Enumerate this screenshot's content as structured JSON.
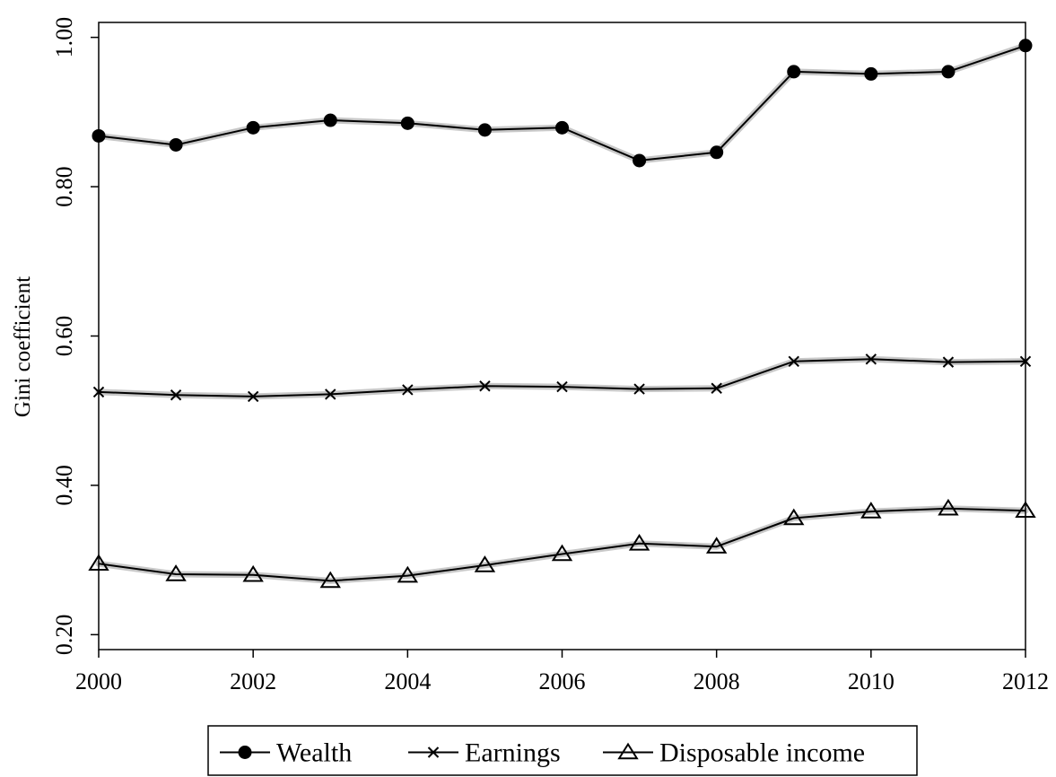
{
  "chart_data": {
    "type": "line",
    "ylabel": "Gini coefficient",
    "xlabel": "",
    "title": "",
    "x": [
      2000,
      2001,
      2002,
      2003,
      2004,
      2005,
      2006,
      2007,
      2008,
      2009,
      2010,
      2011,
      2012
    ],
    "xlim": [
      2000,
      2012
    ],
    "ylim": [
      0.18,
      1.02
    ],
    "xticks": [
      2000,
      2002,
      2004,
      2006,
      2008,
      2010,
      2012
    ],
    "xtick_labels": [
      "2000",
      "2002",
      "2004",
      "2006",
      "2008",
      "2010",
      "2012"
    ],
    "yticks": [
      0.2,
      0.4,
      0.6,
      0.8,
      1.0
    ],
    "ytick_labels": [
      "0.20",
      "0.40",
      "0.60",
      "0.80",
      "1.00"
    ],
    "grid": false,
    "legend_position": "bottom",
    "series": [
      {
        "name": "Wealth",
        "marker": "filled-circle",
        "color": "#000000",
        "band_color": "#c8c8c8",
        "values": [
          0.868,
          0.856,
          0.879,
          0.889,
          0.885,
          0.876,
          0.879,
          0.835,
          0.846,
          0.954,
          0.951,
          0.954,
          0.989
        ]
      },
      {
        "name": "Earnings",
        "marker": "x-cross",
        "color": "#000000",
        "band_color": "#c8c8c8",
        "values": [
          0.525,
          0.521,
          0.519,
          0.522,
          0.528,
          0.533,
          0.532,
          0.529,
          0.53,
          0.566,
          0.569,
          0.565,
          0.566
        ]
      },
      {
        "name": "Disposable income",
        "marker": "open-triangle",
        "color": "#000000",
        "band_color": "#c8c8c8",
        "values": [
          0.295,
          0.281,
          0.28,
          0.272,
          0.279,
          0.293,
          0.308,
          0.322,
          0.318,
          0.356,
          0.365,
          0.369,
          0.366
        ]
      }
    ]
  }
}
